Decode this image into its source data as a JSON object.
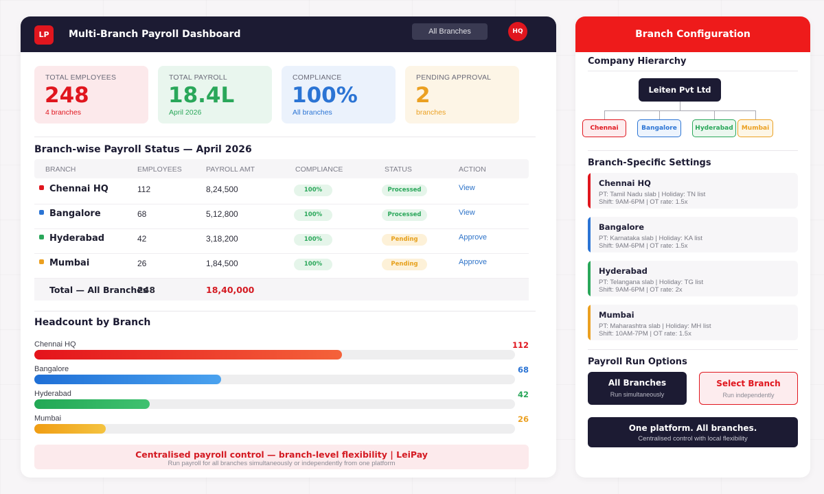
{
  "header": {
    "logo": "LP",
    "title": "Multi-Branch Payroll Dashboard",
    "branch_selector": "All Branches",
    "user_badge": "HQ"
  },
  "stats": [
    {
      "label": "TOTAL EMPLOYEES",
      "value": "248",
      "sub": "4 branches",
      "color": "#e0161e",
      "bg": "#fce9eb"
    },
    {
      "label": "TOTAL PAYROLL",
      "value": "18.4L",
      "sub": "April 2026",
      "color": "#2aa75a",
      "bg": "#e9f6ee"
    },
    {
      "label": "COMPLIANCE",
      "value": "100%",
      "sub": "All branches",
      "color": "#2b74d4",
      "bg": "#ebf2fc"
    },
    {
      "label": "PENDING APPROVAL",
      "value": "2",
      "sub": "branches",
      "color": "#eba021",
      "bg": "#fdf5e6"
    }
  ],
  "table": {
    "title": "Branch-wise Payroll Status — April 2026",
    "headers": [
      "BRANCH",
      "EMPLOYEES",
      "PAYROLL AMT",
      "COMPLIANCE",
      "STATUS",
      "ACTION"
    ],
    "rows": [
      {
        "branch": "Chennai HQ",
        "employees": "112",
        "amount": "8,24,500",
        "compliance": "100%",
        "status": "Processed",
        "action": "View",
        "color": "#e0161e"
      },
      {
        "branch": "Bangalore",
        "employees": "68",
        "amount": "5,12,800",
        "compliance": "100%",
        "status": "Processed",
        "action": "View",
        "color": "#2b74d4"
      },
      {
        "branch": "Hyderabad",
        "employees": "42",
        "amount": "3,18,200",
        "compliance": "100%",
        "status": "Pending",
        "action": "Approve",
        "color": "#2aa75a"
      },
      {
        "branch": "Mumbai",
        "employees": "26",
        "amount": "1,84,500",
        "compliance": "100%",
        "status": "Pending",
        "action": "Approve",
        "color": "#eba021"
      }
    ],
    "total": {
      "label": "Total — All Branches",
      "employees": "248",
      "amount": "18,40,000"
    }
  },
  "headcount": {
    "title": "Headcount by Branch",
    "max": 175,
    "items": [
      {
        "name": "Chennai HQ",
        "value": 112,
        "color": "#e0161e",
        "grad": "linear-gradient(90deg,#e4131b,#f4623a)"
      },
      {
        "name": "Bangalore",
        "value": 68,
        "color": "#2b74d4",
        "grad": "linear-gradient(90deg,#1f6fd6,#4aa2ef)"
      },
      {
        "name": "Hyderabad",
        "value": 42,
        "color": "#2aa75a",
        "grad": "linear-gradient(90deg,#22a855,#3fc170)"
      },
      {
        "name": "Mumbai",
        "value": 26,
        "color": "#eba021",
        "grad": "linear-gradient(90deg,#f09d13,#f4c340)"
      }
    ]
  },
  "banner": {
    "title": "Centralised payroll control — branch-level flexibility | LeiPay",
    "subtitle": "Run payroll for all branches simultaneously or independently from one platform"
  },
  "config": {
    "title": "Branch Configuration",
    "hierarchy_title": "Company Hierarchy",
    "root": "Leiten Pvt Ltd",
    "nodes": [
      {
        "name": "Chennai",
        "color": "#e0161e",
        "bg": "#fdecee"
      },
      {
        "name": "Bangalore",
        "color": "#2b74d4",
        "bg": "#edf4fd"
      },
      {
        "name": "Hyderabad",
        "color": "#2aa75a",
        "bg": "#ebf7ef"
      },
      {
        "name": "Mumbai",
        "color": "#eba021",
        "bg": "#fdf6e6"
      }
    ],
    "settings_title": "Branch-Specific Settings",
    "settings": [
      {
        "name": "Chennai HQ",
        "line1": "PT: Tamil Nadu slab | Holiday: TN list",
        "line2": "Shift: 9AM-6PM | OT rate: 1.5x",
        "color": "#e0161e"
      },
      {
        "name": "Bangalore",
        "line1": "PT: Karnataka slab | Holiday: KA list",
        "line2": "Shift: 9AM-6PM | OT rate: 1.5x",
        "color": "#2b74d4"
      },
      {
        "name": "Hyderabad",
        "line1": "PT: Telangana slab | Holiday: TG list",
        "line2": "Shift: 9AM-6PM | OT rate: 2x",
        "color": "#2aa75a"
      },
      {
        "name": "Mumbai",
        "line1": "PT: Maharashtra slab | Holiday: MH list",
        "line2": "Shift: 10AM-7PM | OT rate: 1.5x",
        "color": "#eba021"
      }
    ],
    "run_title": "Payroll Run Options",
    "run_all": {
      "label": "All Branches",
      "sub": "Run simultaneously"
    },
    "run_select": {
      "label": "Select Branch",
      "sub": "Run independently"
    },
    "tagline": {
      "title": "One platform. All branches.",
      "subtitle": "Centralised control with local flexibility"
    }
  }
}
